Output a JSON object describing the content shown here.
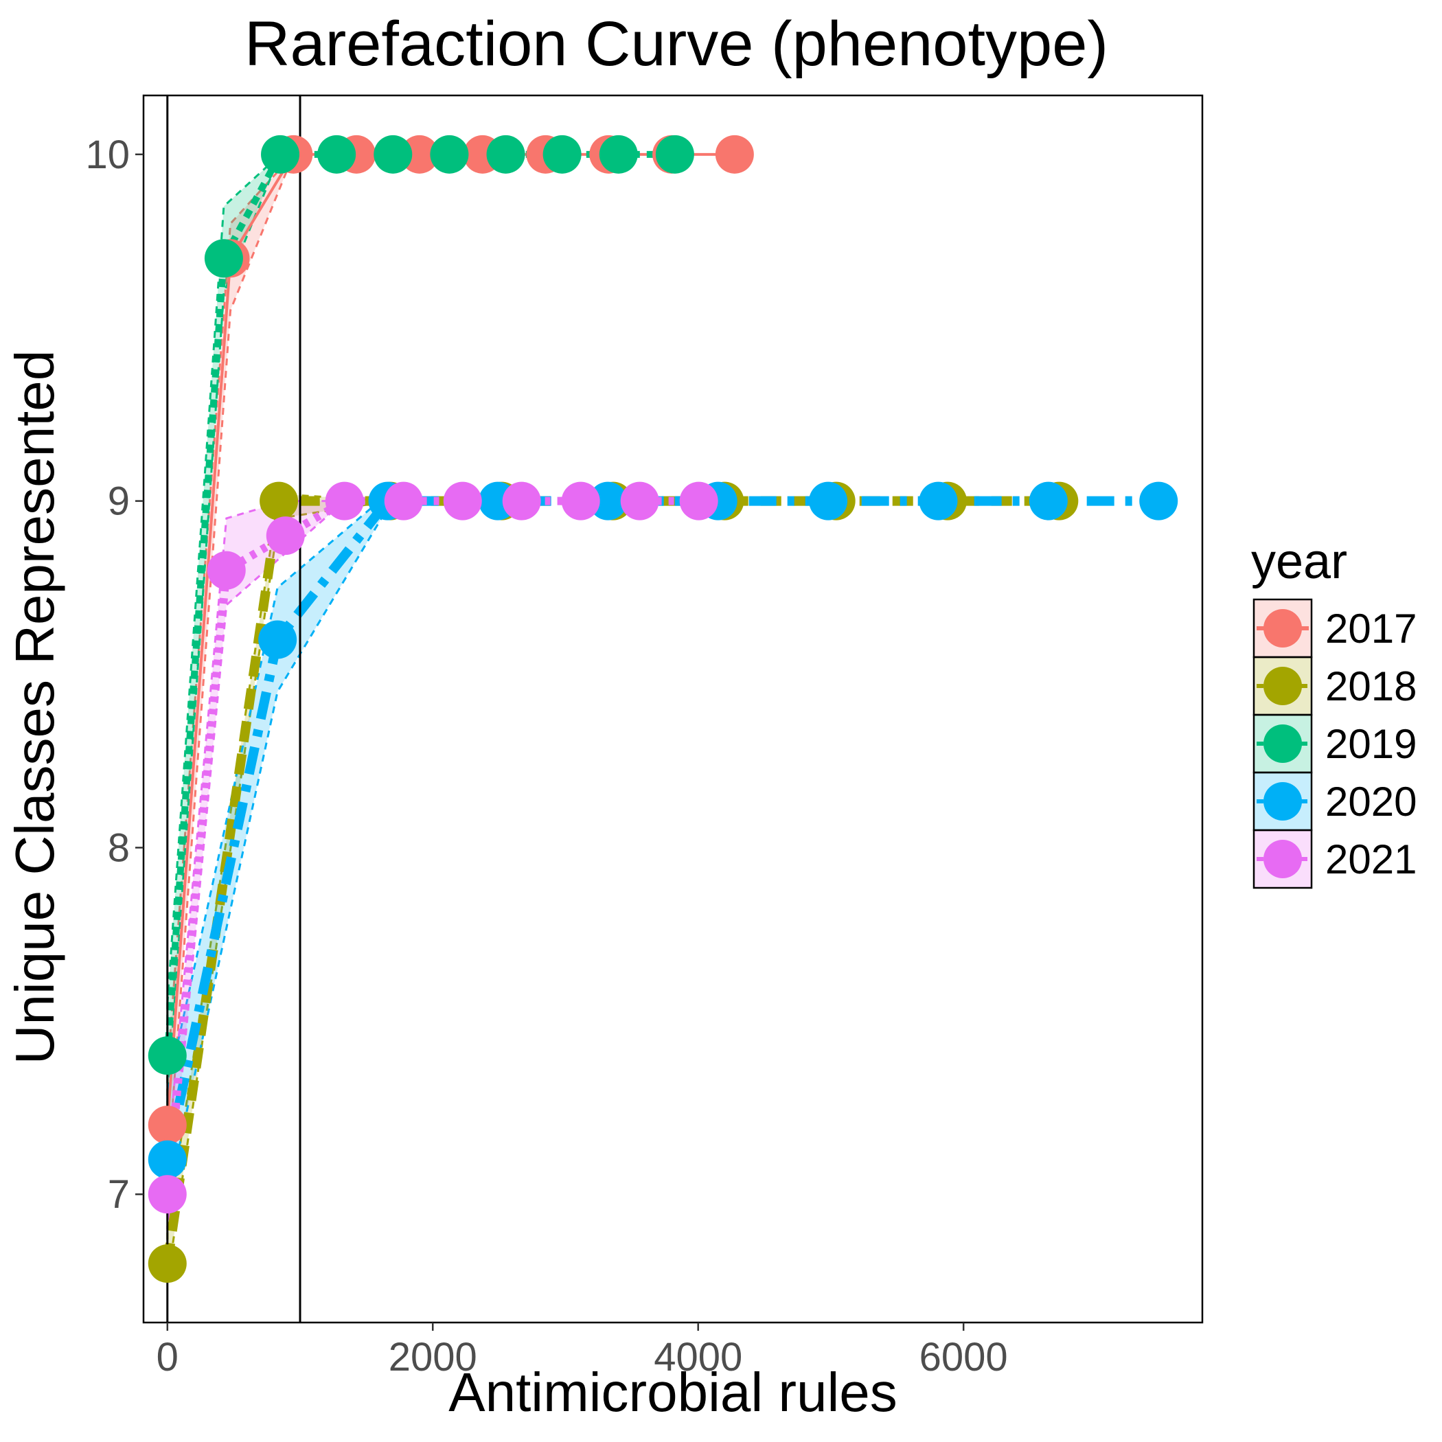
{
  "chart_data": {
    "type": "line",
    "title": "Rarefaction Curve (phenotype)",
    "xlabel": "Antimicrobial rules",
    "ylabel": "Unique Classes Represented",
    "xlim": [
      -180,
      7800
    ],
    "ylim": [
      6.63,
      10.17
    ],
    "xticks": [
      0,
      2000,
      4000,
      6000
    ],
    "yticks": [
      7,
      8,
      9,
      10
    ],
    "grid": false,
    "vlines": [
      0,
      1000
    ],
    "legend": {
      "title": "year",
      "position": "right"
    },
    "series": [
      {
        "name": "2017",
        "color": "#F8766D",
        "dash": "",
        "width": 4,
        "points": [
          [
            0,
            7.2
          ],
          [
            475,
            9.7
          ],
          [
            950,
            10
          ],
          [
            1425,
            10
          ],
          [
            1900,
            10
          ],
          [
            2375,
            10
          ],
          [
            2850,
            10
          ],
          [
            3325,
            10
          ],
          [
            3800,
            10
          ],
          [
            4275,
            10
          ]
        ],
        "ribbon": [
          [
            0,
            7.05,
            7.35
          ],
          [
            475,
            9.55,
            9.8
          ],
          [
            950,
            10,
            10
          ]
        ]
      },
      {
        "name": "2018",
        "color": "#A3A500",
        "dash": "30,18",
        "width": 14,
        "points": [
          [
            0,
            6.8
          ],
          [
            840,
            9
          ],
          [
            1680,
            9
          ],
          [
            2520,
            9
          ],
          [
            3360,
            9
          ],
          [
            4200,
            9
          ],
          [
            5040,
            9
          ],
          [
            5880,
            9
          ],
          [
            6720,
            9
          ]
        ],
        "ribbon": [
          [
            0,
            6.75,
            6.9
          ],
          [
            840,
            8.95,
            9.02
          ],
          [
            1680,
            9,
            9
          ]
        ]
      },
      {
        "name": "2019",
        "color": "#00BF7D",
        "dash": "12,10",
        "width": 10,
        "points": [
          [
            0,
            7.4
          ],
          [
            425,
            9.7
          ],
          [
            850,
            10
          ],
          [
            1275,
            10
          ],
          [
            1700,
            10
          ],
          [
            2125,
            10
          ],
          [
            2550,
            10
          ],
          [
            2975,
            10
          ],
          [
            3400,
            10
          ],
          [
            3825,
            10
          ]
        ],
        "ribbon": [
          [
            0,
            7.25,
            7.55
          ],
          [
            425,
            9.6,
            9.85
          ],
          [
            850,
            10,
            10
          ]
        ]
      },
      {
        "name": "2020",
        "color": "#00B0F6",
        "dash": "40,16,10,16",
        "width": 14,
        "points": [
          [
            0,
            7.1
          ],
          [
            830,
            8.6
          ],
          [
            1660,
            9
          ],
          [
            2490,
            9
          ],
          [
            3320,
            9
          ],
          [
            4150,
            9
          ],
          [
            4980,
            9
          ],
          [
            5810,
            9
          ],
          [
            6640,
            9
          ],
          [
            7470,
            9
          ]
        ],
        "ribbon": [
          [
            0,
            6.98,
            7.3
          ],
          [
            830,
            8.45,
            8.75
          ],
          [
            1660,
            8.98,
            9.02
          ]
        ]
      },
      {
        "name": "2021",
        "color": "#E76BF3",
        "dash": "8,10",
        "width": 12,
        "points": [
          [
            0,
            7.0
          ],
          [
            445,
            8.8
          ],
          [
            890,
            8.9
          ],
          [
            1335,
            9
          ],
          [
            1780,
            9
          ],
          [
            2225,
            9
          ],
          [
            2670,
            9
          ],
          [
            3115,
            9
          ],
          [
            3560,
            9
          ],
          [
            4005,
            9
          ]
        ],
        "ribbon": [
          [
            0,
            6.9,
            7.1
          ],
          [
            445,
            8.7,
            8.95
          ],
          [
            890,
            8.85,
            9.0
          ],
          [
            1335,
            9,
            9
          ]
        ]
      }
    ]
  }
}
